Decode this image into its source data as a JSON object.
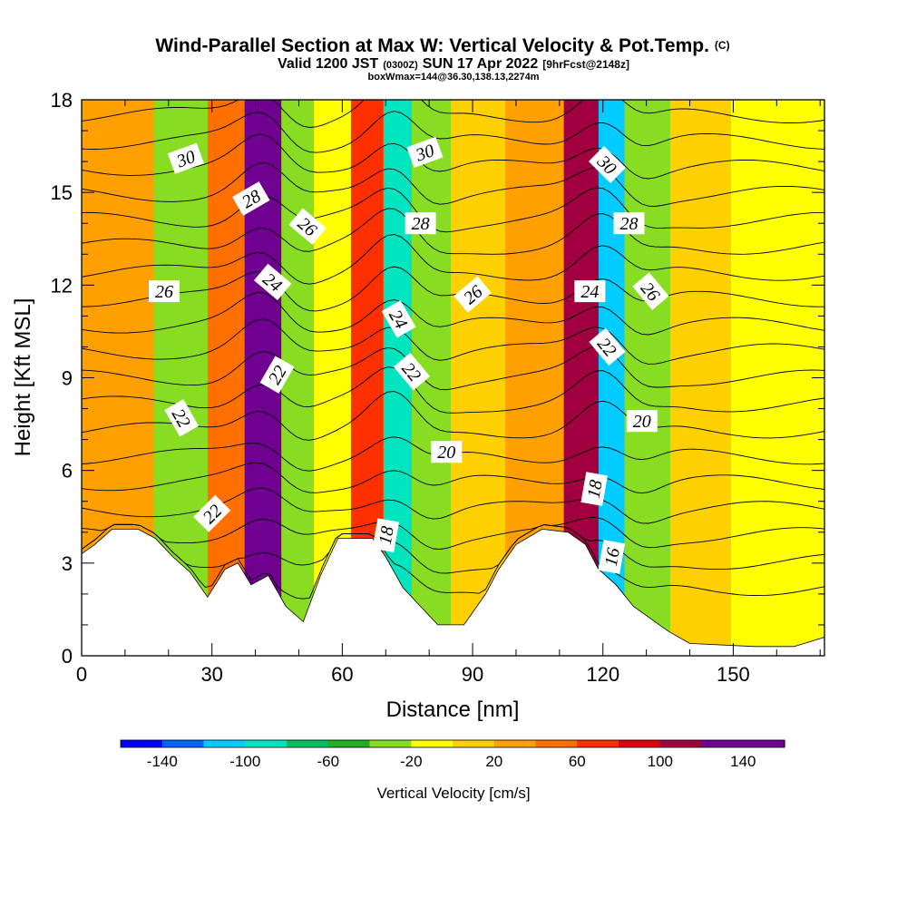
{
  "header": {
    "title_main": "Wind-Parallel Section at Max W: Vertical Velocity & Pot.Temp.",
    "title_mark": "(C)",
    "subtitle_a": "Valid 1200 JST",
    "subtitle_b": "(0300Z)",
    "subtitle_c": "SUN 17 Apr 2022",
    "subtitle_d": "[9hrFcst@2148z]",
    "subtitle2": "boxWmax=144@36.30,138.13,2274m"
  },
  "chart_data": {
    "type": "heatmap",
    "xlabel": "Distance [nm]",
    "ylabel": "Height [Kft MSL]",
    "xlim": [
      0,
      171
    ],
    "ylim": [
      0,
      18
    ],
    "x_ticks": [
      "0",
      "30",
      "60",
      "90",
      "120",
      "150"
    ],
    "y_ticks": [
      "0",
      "3",
      "6",
      "9",
      "12",
      "15",
      "18"
    ],
    "colorbar": {
      "label": "Vertical Velocity [cm/s]",
      "tick_labels": [
        "-140",
        "-100",
        "-60",
        "-20",
        "20",
        "60",
        "100",
        "140"
      ],
      "levels": [
        -160,
        -140,
        -120,
        -100,
        -80,
        -60,
        -40,
        -20,
        0,
        20,
        40,
        60,
        80,
        100,
        120,
        140,
        160
      ],
      "colors": [
        "#0000ff",
        "#0066ff",
        "#00ccff",
        "#00e5c0",
        "#00c060",
        "#22b022",
        "#88dd22",
        "#ffff00",
        "#ffd000",
        "#ffa000",
        "#ff7000",
        "#ff3000",
        "#e00010",
        "#a00040",
        "#700090",
        "#700090"
      ]
    },
    "vertical_velocity_bands": [
      {
        "x": 8,
        "value": 25
      },
      {
        "x": 25,
        "value": -35
      },
      {
        "x": 33,
        "value": 40
      },
      {
        "x": 42,
        "value": 150
      },
      {
        "x": 50,
        "value": -30
      },
      {
        "x": 57,
        "value": -15
      },
      {
        "x": 67,
        "value": 60
      },
      {
        "x": 72,
        "value": -90
      },
      {
        "x": 80,
        "value": -25
      },
      {
        "x": 90,
        "value": 15
      },
      {
        "x": 105,
        "value": 20
      },
      {
        "x": 117,
        "value": 100
      },
      {
        "x": 121,
        "value": -110
      },
      {
        "x": 129,
        "value": -25
      },
      {
        "x": 142,
        "value": 15
      },
      {
        "x": 157,
        "value": -5
      }
    ],
    "potential_temperature_labels": [
      {
        "text": "30",
        "x": 24,
        "y": 16.1,
        "angle": -20
      },
      {
        "text": "28",
        "x": 39,
        "y": 14.8,
        "angle": -30
      },
      {
        "text": "26",
        "x": 52,
        "y": 13.9,
        "angle": 40
      },
      {
        "text": "24",
        "x": 44,
        "y": 12.1,
        "angle": 40
      },
      {
        "text": "22",
        "x": 45,
        "y": 9.1,
        "angle": -60
      },
      {
        "text": "26",
        "x": 19,
        "y": 11.8,
        "angle": 0
      },
      {
        "text": "22",
        "x": 23,
        "y": 7.7,
        "angle": 60
      },
      {
        "text": "22",
        "x": 30,
        "y": 4.6,
        "angle": -45
      },
      {
        "text": "30",
        "x": 79,
        "y": 16.3,
        "angle": -20
      },
      {
        "text": "28",
        "x": 78,
        "y": 14.0,
        "angle": 0
      },
      {
        "text": "24",
        "x": 73,
        "y": 10.9,
        "angle": 60
      },
      {
        "text": "22",
        "x": 76,
        "y": 9.2,
        "angle": 50
      },
      {
        "text": "26",
        "x": 90,
        "y": 11.7,
        "angle": -40
      },
      {
        "text": "20",
        "x": 84,
        "y": 6.6,
        "angle": 0
      },
      {
        "text": "18",
        "x": 70,
        "y": 3.9,
        "angle": -80
      },
      {
        "text": "30",
        "x": 121,
        "y": 15.9,
        "angle": 45
      },
      {
        "text": "28",
        "x": 126,
        "y": 14.0,
        "angle": 0
      },
      {
        "text": "24",
        "x": 117,
        "y": 11.8,
        "angle": 0
      },
      {
        "text": "26",
        "x": 131,
        "y": 11.8,
        "angle": 50
      },
      {
        "text": "22",
        "x": 121,
        "y": 10.0,
        "angle": 50
      },
      {
        "text": "20",
        "x": 129,
        "y": 7.6,
        "angle": 0
      },
      {
        "text": "18",
        "x": 118,
        "y": 5.4,
        "angle": -80
      },
      {
        "text": "16",
        "x": 122,
        "y": 3.2,
        "angle": -80
      }
    ],
    "terrain_height": [
      [
        0,
        3.3
      ],
      [
        3,
        3.6
      ],
      [
        7,
        4.1
      ],
      [
        13,
        4.1
      ],
      [
        17,
        3.8
      ],
      [
        21,
        3.2
      ],
      [
        25,
        2.7
      ],
      [
        29,
        1.9
      ],
      [
        33,
        2.8
      ],
      [
        36,
        3.0
      ],
      [
        39,
        2.3
      ],
      [
        43,
        2.6
      ],
      [
        47,
        1.6
      ],
      [
        51,
        1.1
      ],
      [
        55,
        2.6
      ],
      [
        59,
        3.8
      ],
      [
        67,
        3.8
      ],
      [
        70,
        3.2
      ],
      [
        74,
        2.2
      ],
      [
        78,
        1.6
      ],
      [
        82,
        1.0
      ],
      [
        88,
        1.0
      ],
      [
        93,
        2.0
      ],
      [
        96,
        2.8
      ],
      [
        100,
        3.6
      ],
      [
        106,
        4.1
      ],
      [
        112,
        4.0
      ],
      [
        116,
        3.6
      ],
      [
        119,
        2.8
      ],
      [
        123,
        2.3
      ],
      [
        127,
        1.6
      ],
      [
        131,
        1.2
      ],
      [
        135,
        0.8
      ],
      [
        140,
        0.4
      ],
      [
        155,
        0.3
      ],
      [
        164,
        0.3
      ],
      [
        171,
        0.6
      ]
    ]
  }
}
